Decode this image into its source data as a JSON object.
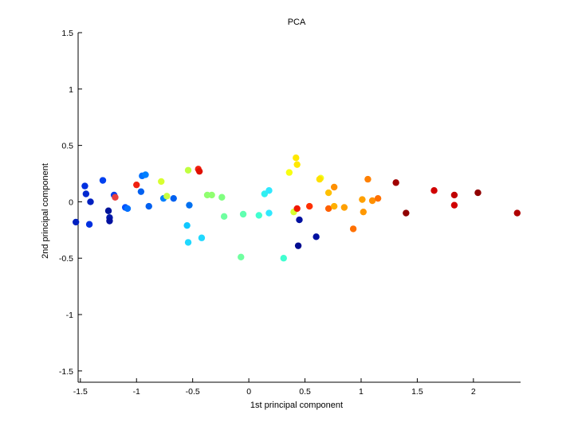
{
  "chart_data": {
    "type": "scatter",
    "title": "PCA",
    "xlabel": "1st principal component",
    "ylabel": "2nd principal component",
    "xlim": [
      -1.52,
      2.42
    ],
    "ylim": [
      -1.6,
      1.5
    ],
    "xticks": [
      -1.5,
      -1,
      -0.5,
      0,
      0.5,
      1,
      1.5,
      2
    ],
    "xtick_labels": [
      "-1.5",
      "-1",
      "-0.5",
      "0",
      "0.5",
      "1",
      "1.5",
      "2"
    ],
    "yticks": [
      -1.5,
      -1,
      -0.5,
      0,
      0.5,
      1,
      1.5
    ],
    "ytick_labels": [
      "-1.5",
      "-1",
      "-0.5",
      "0",
      "0.5",
      "1",
      "1.5"
    ],
    "grid": false,
    "legend": "none",
    "colormap": "jet",
    "points": [
      {
        "x": -1.54,
        "y": -0.18,
        "color": "#0020c0"
      },
      {
        "x": -1.46,
        "y": 0.14,
        "color": "#0030e0"
      },
      {
        "x": -1.45,
        "y": 0.07,
        "color": "#0028d0"
      },
      {
        "x": -1.42,
        "y": -0.2,
        "color": "#0030e0"
      },
      {
        "x": -1.41,
        "y": 0.0,
        "color": "#0020c0"
      },
      {
        "x": -1.3,
        "y": 0.19,
        "color": "#0040f0"
      },
      {
        "x": -1.25,
        "y": -0.08,
        "color": "#00149a"
      },
      {
        "x": -1.24,
        "y": -0.14,
        "color": "#0018a8"
      },
      {
        "x": -1.24,
        "y": -0.17,
        "color": "#0010a0"
      },
      {
        "x": -1.2,
        "y": 0.06,
        "color": "#0040f0"
      },
      {
        "x": -1.19,
        "y": 0.04,
        "color": "#e84040"
      },
      {
        "x": -1.1,
        "y": -0.05,
        "color": "#0050ff"
      },
      {
        "x": -1.08,
        "y": -0.06,
        "color": "#0070ff"
      },
      {
        "x": -1.0,
        "y": 0.15,
        "color": "#f02010"
      },
      {
        "x": -0.96,
        "y": 0.09,
        "color": "#0060f0"
      },
      {
        "x": -0.95,
        "y": 0.23,
        "color": "#0070ff"
      },
      {
        "x": -0.92,
        "y": 0.24,
        "color": "#0080ff"
      },
      {
        "x": -0.89,
        "y": -0.04,
        "color": "#0060f0"
      },
      {
        "x": -0.78,
        "y": 0.18,
        "color": "#d8ff30"
      },
      {
        "x": -0.76,
        "y": 0.03,
        "color": "#0080ff"
      },
      {
        "x": -0.73,
        "y": 0.05,
        "color": "#c8ff40"
      },
      {
        "x": -0.67,
        "y": 0.03,
        "color": "#0060f0"
      },
      {
        "x": -0.54,
        "y": 0.28,
        "color": "#c0ff40"
      },
      {
        "x": -0.55,
        "y": -0.21,
        "color": "#10c8ff"
      },
      {
        "x": -0.54,
        "y": -0.36,
        "color": "#20d8ff"
      },
      {
        "x": -0.53,
        "y": -0.03,
        "color": "#0070f0"
      },
      {
        "x": -0.45,
        "y": 0.29,
        "color": "#f02010"
      },
      {
        "x": -0.44,
        "y": 0.27,
        "color": "#e01000"
      },
      {
        "x": -0.42,
        "y": -0.32,
        "color": "#20d8ff"
      },
      {
        "x": -0.37,
        "y": 0.06,
        "color": "#90ff70"
      },
      {
        "x": -0.33,
        "y": 0.06,
        "color": "#90ff70"
      },
      {
        "x": -0.24,
        "y": 0.04,
        "color": "#80ff80"
      },
      {
        "x": -0.22,
        "y": -0.13,
        "color": "#70ffa0"
      },
      {
        "x": -0.07,
        "y": -0.49,
        "color": "#70ffa0"
      },
      {
        "x": -0.05,
        "y": -0.11,
        "color": "#60ffb0"
      },
      {
        "x": 0.09,
        "y": -0.12,
        "color": "#40ffd0"
      },
      {
        "x": 0.14,
        "y": 0.07,
        "color": "#30f0f0"
      },
      {
        "x": 0.18,
        "y": 0.1,
        "color": "#30e8ff"
      },
      {
        "x": 0.18,
        "y": -0.1,
        "color": "#30e8ff"
      },
      {
        "x": 0.31,
        "y": -0.5,
        "color": "#40ffd0"
      },
      {
        "x": 0.36,
        "y": 0.26,
        "color": "#f8ff10"
      },
      {
        "x": 0.4,
        "y": -0.09,
        "color": "#d8ff30"
      },
      {
        "x": 0.42,
        "y": 0.39,
        "color": "#ffe800"
      },
      {
        "x": 0.43,
        "y": 0.33,
        "color": "#ffe800"
      },
      {
        "x": 0.43,
        "y": -0.06,
        "color": "#f01800"
      },
      {
        "x": 0.44,
        "y": -0.39,
        "color": "#000c90"
      },
      {
        "x": 0.45,
        "y": -0.16,
        "color": "#0010a0"
      },
      {
        "x": 0.54,
        "y": -0.04,
        "color": "#ff3000"
      },
      {
        "x": 0.6,
        "y": -0.31,
        "color": "#0010a0"
      },
      {
        "x": 0.64,
        "y": 0.21,
        "color": "#f0ff20"
      },
      {
        "x": 0.63,
        "y": 0.2,
        "color": "#ffe000"
      },
      {
        "x": 0.71,
        "y": -0.06,
        "color": "#ff6000"
      },
      {
        "x": 0.71,
        "y": 0.08,
        "color": "#ffc000"
      },
      {
        "x": 0.76,
        "y": 0.13,
        "color": "#ff9000"
      },
      {
        "x": 0.76,
        "y": -0.04,
        "color": "#ffb000"
      },
      {
        "x": 0.85,
        "y": -0.05,
        "color": "#ffa000"
      },
      {
        "x": 0.93,
        "y": -0.24,
        "color": "#ff7000"
      },
      {
        "x": 1.01,
        "y": 0.02,
        "color": "#ffa000"
      },
      {
        "x": 1.02,
        "y": -0.09,
        "color": "#ff9800"
      },
      {
        "x": 1.06,
        "y": 0.2,
        "color": "#ff8000"
      },
      {
        "x": 1.1,
        "y": 0.01,
        "color": "#ff9000"
      },
      {
        "x": 1.15,
        "y": 0.03,
        "color": "#ff7000"
      },
      {
        "x": 1.31,
        "y": 0.17,
        "color": "#a00000"
      },
      {
        "x": 1.4,
        "y": -0.1,
        "color": "#900000"
      },
      {
        "x": 1.65,
        "y": 0.1,
        "color": "#d00000"
      },
      {
        "x": 1.83,
        "y": 0.06,
        "color": "#c00000"
      },
      {
        "x": 1.83,
        "y": -0.03,
        "color": "#d00000"
      },
      {
        "x": 2.04,
        "y": 0.08,
        "color": "#900000"
      },
      {
        "x": 2.39,
        "y": -0.1,
        "color": "#b00000"
      }
    ]
  }
}
